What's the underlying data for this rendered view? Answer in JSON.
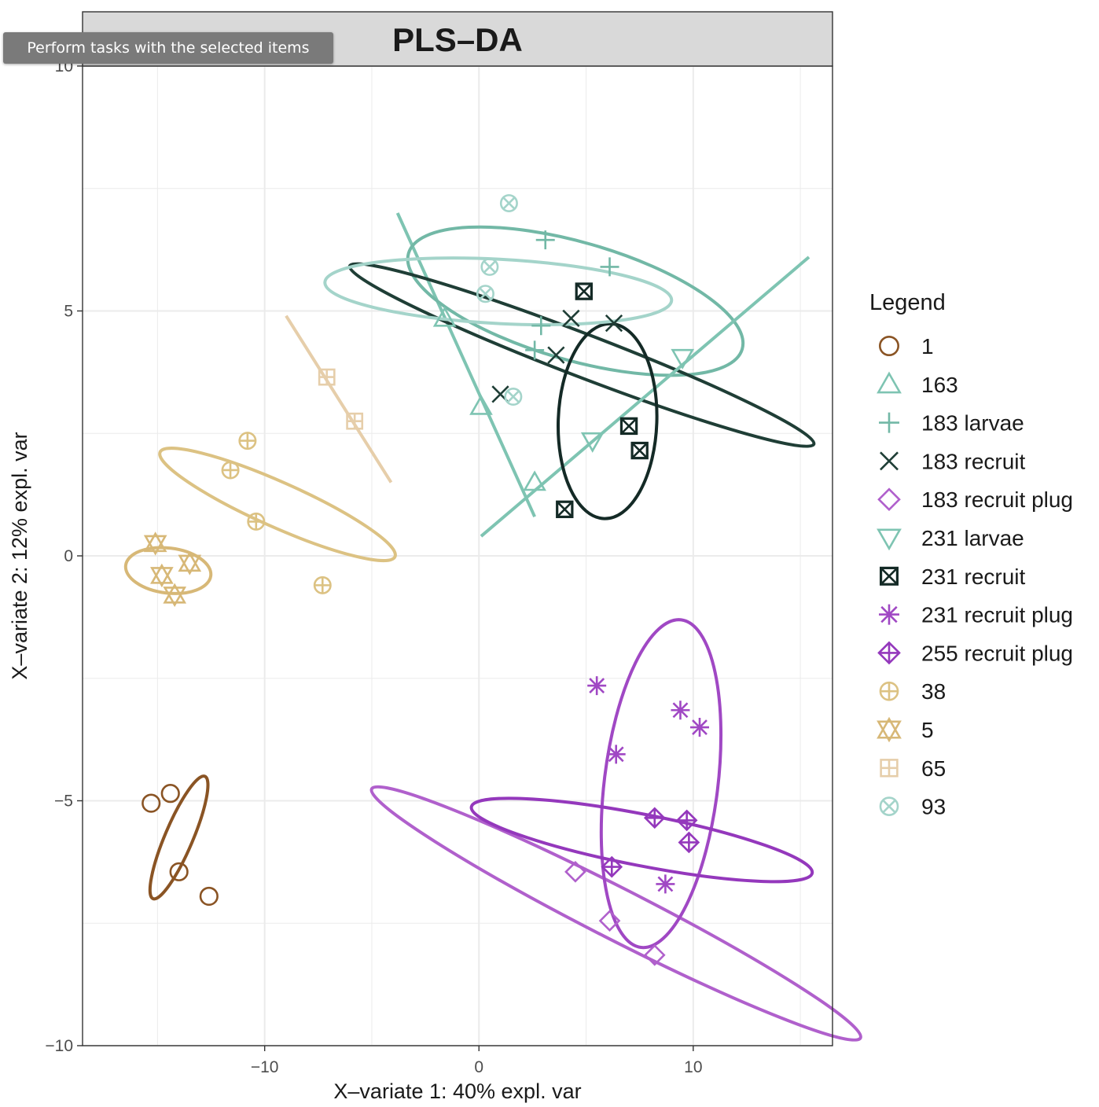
{
  "tooltip": {
    "text": "Perform tasks with the selected items"
  },
  "chart_data": {
    "type": "scatter",
    "title": "PLS–DA",
    "xlabel": "X–variate 1: 40% expl. var",
    "ylabel": "X–variate 2: 12% expl. var",
    "xlim": [
      -18.5,
      16.5
    ],
    "ylim": [
      -10,
      10
    ],
    "xticks": [
      -10,
      0,
      10
    ],
    "xtick_labels": [
      "−10",
      "0",
      "10"
    ],
    "yticks": [
      -10,
      -5,
      0,
      5,
      10
    ],
    "ytick_labels": [
      "−10",
      "−5",
      "0",
      "5",
      "10"
    ],
    "grid": true,
    "legend": {
      "title": "Legend",
      "placement": "right"
    },
    "series": [
      {
        "name": "1",
        "marker": "circle",
        "color": "#8a5424",
        "points": [
          [
            -15.3,
            -5.05
          ],
          [
            -14.4,
            -4.85
          ],
          [
            -14.0,
            -6.45
          ],
          [
            -12.6,
            -6.95
          ]
        ],
        "ellipse": {
          "cx": -14.0,
          "cy": -5.75,
          "rx": 3.1,
          "ry": 0.65,
          "angle_deg": 67
        }
      },
      {
        "name": "163",
        "marker": "triangle-up",
        "color": "#7ec4b2",
        "points": [
          [
            -1.6,
            4.85
          ],
          [
            0.1,
            3.05
          ],
          [
            2.6,
            1.5
          ]
        ],
        "line": [
          [
            -3.8,
            7.0
          ],
          [
            2.6,
            0.8
          ]
        ]
      },
      {
        "name": "183 larvae",
        "marker": "plus",
        "color": "#72b8a6",
        "points": [
          [
            3.1,
            6.45
          ],
          [
            6.1,
            5.9
          ],
          [
            2.9,
            4.7
          ],
          [
            2.6,
            4.2
          ]
        ],
        "ellipse": {
          "cx": 4.5,
          "cy": 5.2,
          "rx": 2.75,
          "ry": 8.1,
          "angle_deg": 74
        }
      },
      {
        "name": "183 recruit",
        "marker": "x",
        "color": "#1f3e36",
        "points": [
          [
            1.0,
            3.3
          ],
          [
            3.6,
            4.1
          ],
          [
            4.3,
            4.85
          ],
          [
            6.3,
            4.75
          ]
        ],
        "ellipse": {
          "cx": 4.8,
          "cy": 4.1,
          "rx": 1.0,
          "ry": 11.6,
          "angle_deg": 69
        }
      },
      {
        "name": "183 recruit plug",
        "marker": "diamond",
        "color": "#b060cc",
        "points": [
          [
            4.5,
            -6.45
          ],
          [
            6.1,
            -7.45
          ],
          [
            8.2,
            -8.15
          ]
        ],
        "ellipse": {
          "cx": 6.4,
          "cy": -7.3,
          "rx": 1.2,
          "ry": 12.8,
          "angle_deg": 63
        }
      },
      {
        "name": "231 larvae",
        "marker": "triangle-down",
        "color": "#7ec4b2",
        "points": [
          [
            5.3,
            2.35
          ],
          [
            9.5,
            4.05
          ]
        ],
        "line": [
          [
            0.1,
            0.4
          ],
          [
            15.4,
            6.1
          ]
        ]
      },
      {
        "name": "231 recruit",
        "marker": "square-x",
        "color": "#142a26",
        "points": [
          [
            4.9,
            5.4
          ],
          [
            7.0,
            2.65
          ],
          [
            7.5,
            2.15
          ],
          [
            4.0,
            0.95
          ]
        ],
        "ellipse": {
          "cx": 6.0,
          "cy": 2.75,
          "rx": 4.55,
          "ry": 2.3,
          "angle_deg": 88
        }
      },
      {
        "name": "231 recruit plug",
        "marker": "asterisk",
        "color": "#a048c4",
        "points": [
          [
            5.5,
            -2.65
          ],
          [
            9.4,
            -3.15
          ],
          [
            10.3,
            -3.5
          ],
          [
            6.4,
            -4.05
          ],
          [
            8.7,
            -6.7
          ]
        ],
        "ellipse": {
          "cx": 8.5,
          "cy": -4.65,
          "rx": 7.7,
          "ry": 2.65,
          "angle_deg": 83
        }
      },
      {
        "name": "255 recruit plug",
        "marker": "diamond-plus",
        "color": "#9438bc",
        "points": [
          [
            8.2,
            -5.35
          ],
          [
            9.7,
            -5.4
          ],
          [
            9.8,
            -5.85
          ],
          [
            6.2,
            -6.35
          ]
        ],
        "ellipse": {
          "cx": 7.6,
          "cy": -5.8,
          "rx": 1.2,
          "ry": 8.1,
          "angle_deg": 79
        }
      },
      {
        "name": "38",
        "marker": "circle-plus",
        "color": "#dcc283",
        "points": [
          [
            -10.8,
            2.35
          ],
          [
            -11.6,
            1.75
          ],
          [
            -10.4,
            0.7
          ],
          [
            -7.3,
            -0.6
          ]
        ],
        "ellipse": {
          "cx": -9.4,
          "cy": 1.05,
          "rx": 1.05,
          "ry": 6.0,
          "angle_deg": 66
        }
      },
      {
        "name": "5",
        "marker": "star-of-david",
        "color": "#d7b877",
        "points": [
          [
            -15.1,
            0.25
          ],
          [
            -14.8,
            -0.4
          ],
          [
            -14.2,
            -0.8
          ],
          [
            -13.5,
            -0.15
          ]
        ],
        "ellipse": {
          "cx": -14.5,
          "cy": -0.3,
          "rx": 1.05,
          "ry": 2.0,
          "angle_deg": 83
        }
      },
      {
        "name": "65",
        "marker": "square-plus",
        "color": "#e6ceaa",
        "points": [
          [
            -7.1,
            3.65
          ],
          [
            -5.8,
            2.75
          ]
        ],
        "line": [
          [
            -9.0,
            4.9
          ],
          [
            -4.1,
            1.5
          ]
        ]
      },
      {
        "name": "93",
        "marker": "circle-x",
        "color": "#a4d4ca",
        "points": [
          [
            1.4,
            7.2
          ],
          [
            0.5,
            5.9
          ],
          [
            0.3,
            5.35
          ],
          [
            1.6,
            3.25
          ]
        ],
        "ellipse": {
          "cx": 0.9,
          "cy": 5.4,
          "rx": 1.5,
          "ry": 8.1,
          "angle_deg": 87
        }
      }
    ]
  }
}
